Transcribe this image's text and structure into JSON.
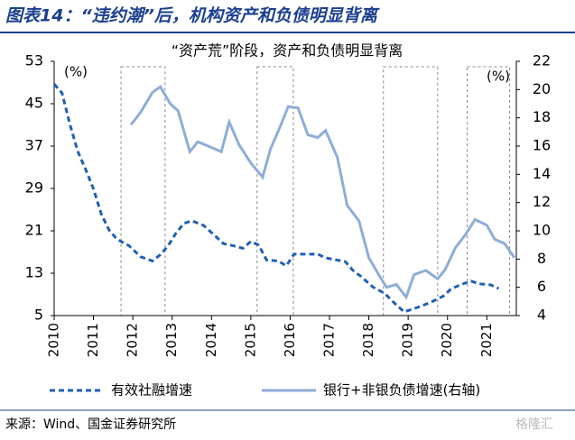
{
  "header": {
    "title": "图表14：“违约潮”后，机构资产和负债明显背离"
  },
  "chart_data": {
    "type": "line",
    "subtitle": "“资产荒”阶段，资产和负债明显背离",
    "ylabel": "(%)",
    "y2label": "(%)",
    "xlim": [
      2010,
      2021.75
    ],
    "xticks": [
      2010,
      2011,
      2012,
      2013,
      2014,
      2015,
      2016,
      2017,
      2018,
      2019,
      2020,
      2021
    ],
    "ylim": [
      5,
      53
    ],
    "yticks": [
      5,
      13,
      21,
      29,
      37,
      45,
      53
    ],
    "y2lim": [
      4,
      22
    ],
    "y2ticks": [
      4,
      6,
      8,
      10,
      12,
      14,
      16,
      18,
      20,
      22
    ],
    "periods": [
      [
        2011.7,
        2012.82
      ],
      [
        2015.16,
        2016.08
      ],
      [
        2018.37,
        2019.75
      ],
      [
        2020.5,
        2021.58
      ]
    ],
    "series": [
      {
        "name": "有效社融增速",
        "color": "#1f5fb4",
        "dashed": true,
        "x": [
          2010.0,
          2010.2,
          2010.4,
          2010.6,
          2010.8,
          2011.0,
          2011.2,
          2011.4,
          2011.6,
          2011.9,
          2012.2,
          2012.5,
          2012.7,
          2012.9,
          2013.1,
          2013.3,
          2013.5,
          2013.8,
          2014.1,
          2014.3,
          2014.6,
          2014.8,
          2015.0,
          2015.2,
          2015.4,
          2015.7,
          2015.9,
          2016.1,
          2016.4,
          2016.7,
          2016.9,
          2017.1,
          2017.4,
          2017.6,
          2017.8,
          2018.1,
          2018.4,
          2018.7,
          2018.9,
          2019.1,
          2019.3,
          2019.6,
          2019.9,
          2020.1,
          2020.4,
          2020.6,
          2020.8,
          2021.1,
          2021.3
        ],
        "values": [
          48.7,
          47.0,
          41.1,
          36.0,
          32.6,
          28.9,
          24.1,
          21.1,
          19.4,
          18.2,
          16.1,
          15.3,
          16.5,
          18.2,
          20.6,
          22.4,
          22.9,
          22.0,
          20.0,
          18.6,
          18.1,
          17.7,
          19.0,
          18.3,
          15.5,
          15.3,
          14.4,
          16.6,
          16.6,
          16.6,
          15.9,
          15.6,
          15.2,
          13.5,
          12.4,
          10.4,
          9.2,
          7.0,
          5.7,
          6.2,
          6.7,
          7.6,
          8.7,
          10.1,
          11.0,
          11.5,
          11.0,
          10.8,
          10.1
        ]
      },
      {
        "name": "银行+非银负债增速(右轴)",
        "color": "#8fadd6",
        "axis": "y2",
        "x": [
          2011.95,
          2012.2,
          2012.5,
          2012.7,
          2012.95,
          2013.15,
          2013.45,
          2013.65,
          2014.0,
          2014.25,
          2014.45,
          2014.7,
          2015.0,
          2015.3,
          2015.5,
          2015.75,
          2015.95,
          2016.2,
          2016.45,
          2016.7,
          2016.9,
          2017.2,
          2017.45,
          2017.75,
          2018.0,
          2018.25,
          2018.45,
          2018.7,
          2018.95,
          2019.15,
          2019.45,
          2019.75,
          2019.95,
          2020.2,
          2020.45,
          2020.7,
          2021.0,
          2021.2,
          2021.45,
          2021.7
        ],
        "values": [
          17.5,
          18.4,
          19.8,
          20.2,
          19.0,
          18.5,
          15.6,
          16.3,
          15.9,
          15.6,
          17.7,
          16.1,
          14.8,
          13.8,
          15.8,
          17.4,
          18.8,
          18.7,
          16.8,
          16.6,
          17.1,
          15.2,
          11.8,
          10.7,
          8.1,
          6.9,
          6.0,
          6.2,
          5.3,
          6.9,
          7.2,
          6.6,
          7.3,
          8.8,
          9.7,
          10.8,
          10.4,
          9.4,
          9.1,
          8.1
        ]
      }
    ]
  },
  "footer": {
    "source": "来源：Wind、国金证券研究所",
    "watermark": "格隆汇"
  }
}
